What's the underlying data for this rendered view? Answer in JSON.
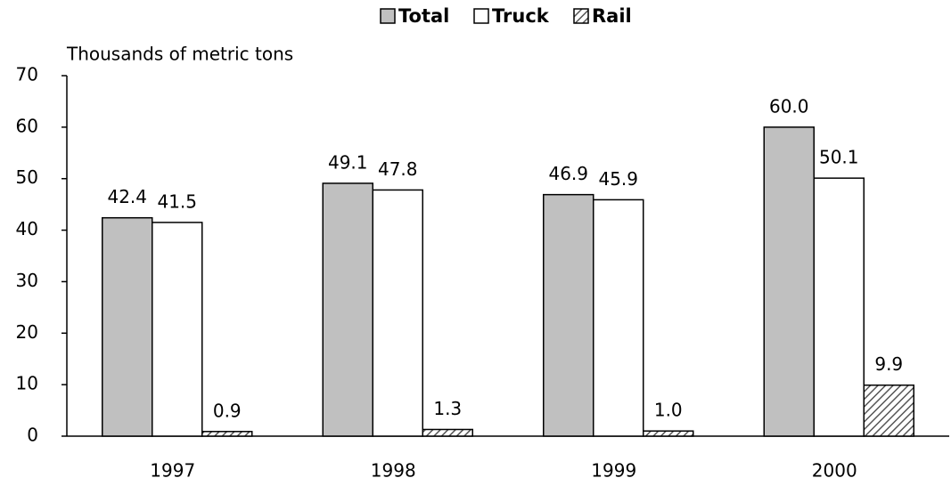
{
  "chart_data": {
    "type": "bar",
    "y_axis_label": "Thousands of metric tons",
    "categories": [
      "1997",
      "1998",
      "1999",
      "2000"
    ],
    "series": [
      {
        "name": "Total",
        "color": "#c0c0c0",
        "values": [
          42.4,
          49.1,
          46.9,
          60.0
        ],
        "value_labels": [
          "42.4",
          "49.1",
          "46.9",
          "60.0"
        ]
      },
      {
        "name": "Truck",
        "color": "#ffffff",
        "values": [
          41.5,
          47.8,
          45.9,
          50.1
        ],
        "value_labels": [
          "41.5",
          "47.8",
          "45.9",
          "50.1"
        ]
      },
      {
        "name": "Rail",
        "color": "#555555",
        "pattern": "diagonal-hatch",
        "values": [
          0.9,
          1.3,
          1.0,
          9.9
        ],
        "value_labels": [
          "0.9",
          "1.3",
          "1.0",
          "9.9"
        ]
      }
    ],
    "ylim": [
      0,
      70
    ],
    "yticks": [
      0,
      10,
      20,
      30,
      40,
      50,
      60,
      70
    ],
    "legend": "top"
  }
}
